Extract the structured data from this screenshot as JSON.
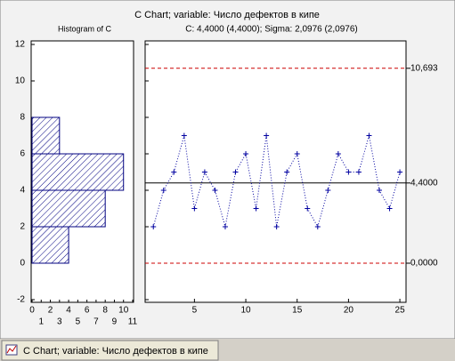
{
  "chart_data": {
    "type": "control",
    "title": "C Chart; variable:  Число дефектов в кипе",
    "histogram_title": "Histogram of C",
    "stats_label": "C: 4,4000 (4,4000); Sigma: 2,0976 (2,0976)",
    "ylim": [
      -2,
      12
    ],
    "yticks": [
      -2,
      0,
      2,
      4,
      6,
      8,
      10,
      12
    ],
    "x": [
      1,
      2,
      3,
      4,
      5,
      6,
      7,
      8,
      9,
      10,
      11,
      12,
      13,
      14,
      15,
      16,
      17,
      18,
      19,
      20,
      21,
      22,
      23,
      24,
      25
    ],
    "xlim": [
      0.2,
      25.6
    ],
    "xticks": [
      5,
      10,
      15,
      20,
      25
    ],
    "series": [
      {
        "color": "#0000a0",
        "values": [
          2,
          4,
          5,
          7,
          3,
          5,
          4,
          2,
          5,
          6,
          3,
          7,
          2,
          5,
          6,
          3,
          2,
          4,
          6,
          5,
          5,
          7,
          4,
          3,
          5
        ]
      }
    ],
    "limits": [
      {
        "value": 10.693,
        "label": "10,693",
        "color": "#cc0000",
        "dashed": true
      },
      {
        "value": 4.4,
        "label": "4,4000",
        "color": "#000000",
        "dashed": false
      },
      {
        "value": 0,
        "label": "0,0000",
        "color": "#cc0000",
        "dashed": true
      }
    ],
    "histogram": {
      "bins": [
        0,
        2,
        4,
        6,
        8
      ],
      "counts": [
        4,
        8,
        10,
        3
      ],
      "color": "#000080",
      "xlim": [
        0,
        11
      ],
      "xticks": [
        0,
        1,
        2,
        3,
        4,
        5,
        6,
        7,
        8,
        9,
        10,
        11
      ]
    }
  },
  "tab": {
    "label": "C Chart; variable:  Число дефектов в кипе"
  }
}
